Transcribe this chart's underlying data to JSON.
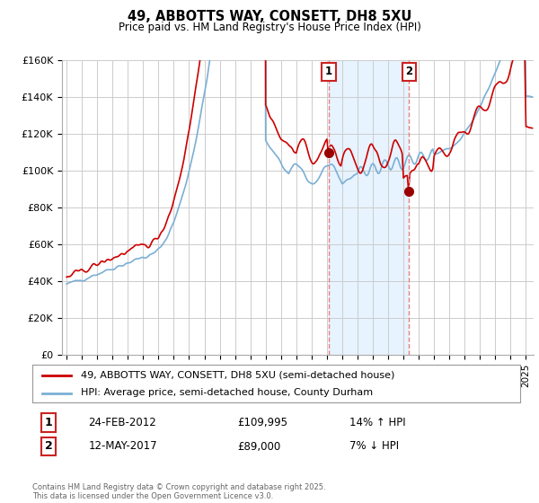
{
  "title": "49, ABBOTTS WAY, CONSETT, DH8 5XU",
  "subtitle": "Price paid vs. HM Land Registry's House Price Index (HPI)",
  "legend_line1": "49, ABBOTTS WAY, CONSETT, DH8 5XU (semi-detached house)",
  "legend_line2": "HPI: Average price, semi-detached house, County Durham",
  "annotation1_num": "1",
  "annotation1_date": "24-FEB-2012",
  "annotation1_price": "£109,995",
  "annotation1_hpi": "14% ↑ HPI",
  "annotation2_num": "2",
  "annotation2_date": "12-MAY-2017",
  "annotation2_price": "£89,000",
  "annotation2_hpi": "7% ↓ HPI",
  "footer": "Contains HM Land Registry data © Crown copyright and database right 2025.\nThis data is licensed under the Open Government Licence v3.0.",
  "line_color_red": "#cc0000",
  "line_color_blue": "#7bafd4",
  "vline_color": "#e88080",
  "shade_color": "#ddeeff",
  "ylim": [
    0,
    160000
  ],
  "yticks": [
    0,
    20000,
    40000,
    60000,
    80000,
    100000,
    120000,
    140000,
    160000
  ],
  "ytick_labels": [
    "£0",
    "£20K",
    "£40K",
    "£60K",
    "£80K",
    "£100K",
    "£120K",
    "£140K",
    "£160K"
  ],
  "vline1_x": 2012.12,
  "vline2_x": 2017.36,
  "marker1_x": 2012.12,
  "marker1_y": 109995,
  "marker2_x": 2017.36,
  "marker2_y": 89000,
  "xlim_start": 1994.7,
  "xlim_end": 2025.5
}
